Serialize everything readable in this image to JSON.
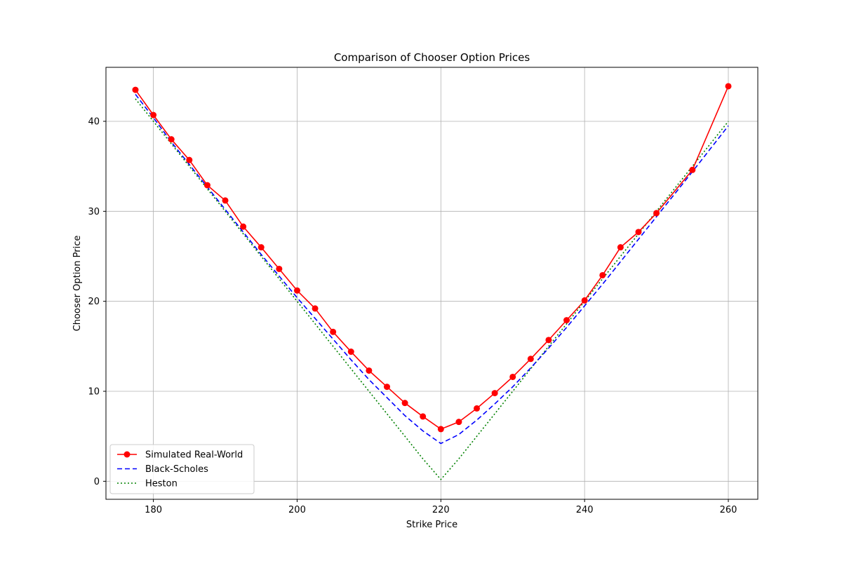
{
  "chart_data": {
    "type": "line",
    "title": "Comparison of Chooser Option Prices",
    "xlabel": "Strike Price",
    "ylabel": "Chooser Option Price",
    "xlim": [
      173.4,
      264.1
    ],
    "ylim": [
      -2.0,
      46.0
    ],
    "xticks": [
      180,
      200,
      220,
      240,
      260
    ],
    "yticks": [
      0,
      10,
      20,
      30,
      40
    ],
    "xtick_labels": [
      "180",
      "200",
      "220",
      "240",
      "260"
    ],
    "ytick_labels": [
      "0",
      "10",
      "20",
      "30",
      "40"
    ],
    "grid": true,
    "legend_position": "lower-left",
    "x": [
      177.5,
      180,
      182.5,
      185,
      187.5,
      190,
      192.5,
      195,
      197.5,
      200,
      202.5,
      205,
      207.5,
      210,
      212.5,
      215,
      217.5,
      220,
      222.5,
      225,
      227.5,
      230,
      232.5,
      235,
      237.5,
      240,
      242.5,
      245,
      247.5,
      250,
      255,
      260
    ],
    "series": [
      {
        "name": "Simulated Real-World",
        "color": "#ff0000",
        "style": "solid-marker",
        "values": [
          43.5,
          40.7,
          38.0,
          35.7,
          32.9,
          31.2,
          28.3,
          26.0,
          23.6,
          21.2,
          19.2,
          16.6,
          14.4,
          12.3,
          10.5,
          8.7,
          7.2,
          5.8,
          6.6,
          8.1,
          9.8,
          11.6,
          13.6,
          15.7,
          17.9,
          20.1,
          22.9,
          26.0,
          27.7,
          29.8,
          34.6,
          43.9
        ]
      },
      {
        "name": "Black-Scholes",
        "color": "#0000ff",
        "style": "dashed",
        "values": [
          43.0,
          40.4,
          37.7,
          35.2,
          32.7,
          30.2,
          27.7,
          25.2,
          22.8,
          20.4,
          18.1,
          15.8,
          13.5,
          11.3,
          9.3,
          7.3,
          5.6,
          4.2,
          5.2,
          6.8,
          8.6,
          10.5,
          12.6,
          14.8,
          17.1,
          19.5,
          21.9,
          24.4,
          26.9,
          29.4,
          34.4,
          39.5
        ]
      },
      {
        "name": "Heston",
        "color": "#008000",
        "style": "dotted",
        "values": [
          42.5,
          40.0,
          37.5,
          35.0,
          32.5,
          30.0,
          27.5,
          25.0,
          22.5,
          20.0,
          17.5,
          15.0,
          12.5,
          10.0,
          7.5,
          5.0,
          2.5,
          0.2,
          2.5,
          5.0,
          7.5,
          10.0,
          12.5,
          15.0,
          17.5,
          20.0,
          22.5,
          25.0,
          27.5,
          30.0,
          35.0,
          40.0
        ]
      }
    ]
  }
}
